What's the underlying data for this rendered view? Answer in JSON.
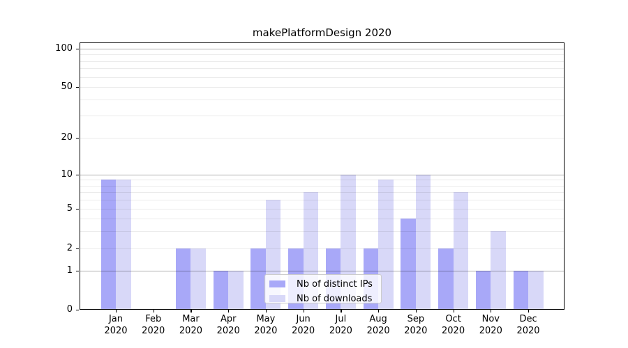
{
  "chart_data": {
    "type": "bar",
    "title": "makePlatformDesign 2020",
    "categories": [
      "Jan",
      "Feb",
      "Mar",
      "Apr",
      "May",
      "Jun",
      "Jul",
      "Aug",
      "Sep",
      "Oct",
      "Nov",
      "Dec"
    ],
    "category_sublabel": "2020",
    "series": [
      {
        "name": "Nb of distinct IPs",
        "color": "#a8a8f8",
        "values": [
          9,
          0,
          2,
          1,
          2,
          2,
          2,
          2,
          4,
          2,
          1,
          1
        ]
      },
      {
        "name": "Nb of downloads",
        "color": "#d8d8f8",
        "values": [
          9,
          0,
          2,
          1,
          6,
          7,
          10,
          9,
          10,
          7,
          3,
          1
        ]
      }
    ],
    "y_axis": {
      "scale": "log-like with linear segment below 1",
      "tick_labels": [
        "0",
        "1",
        "2",
        "5",
        "10",
        "20",
        "50",
        "100"
      ],
      "tick_values": [
        0,
        1,
        2,
        5,
        10,
        20,
        50,
        100
      ],
      "major_gridlines": [
        1,
        10,
        100
      ],
      "minor_gridlines": [
        2,
        3,
        4,
        5,
        6,
        7,
        8,
        9,
        20,
        30,
        40,
        50,
        60,
        70,
        80,
        90
      ],
      "ylim": [
        0,
        110
      ]
    },
    "legend": {
      "position": "lower center",
      "entries": [
        "Nb of distinct IPs",
        "Nb of downloads"
      ]
    },
    "grid": "on, drawn above bars",
    "colors": {
      "bar_dark": "#a8a8f8",
      "bar_light": "#d8d8f8",
      "grid_major": "#adadad",
      "grid_minor": "#ebebeb",
      "axis": "#000000"
    }
  }
}
